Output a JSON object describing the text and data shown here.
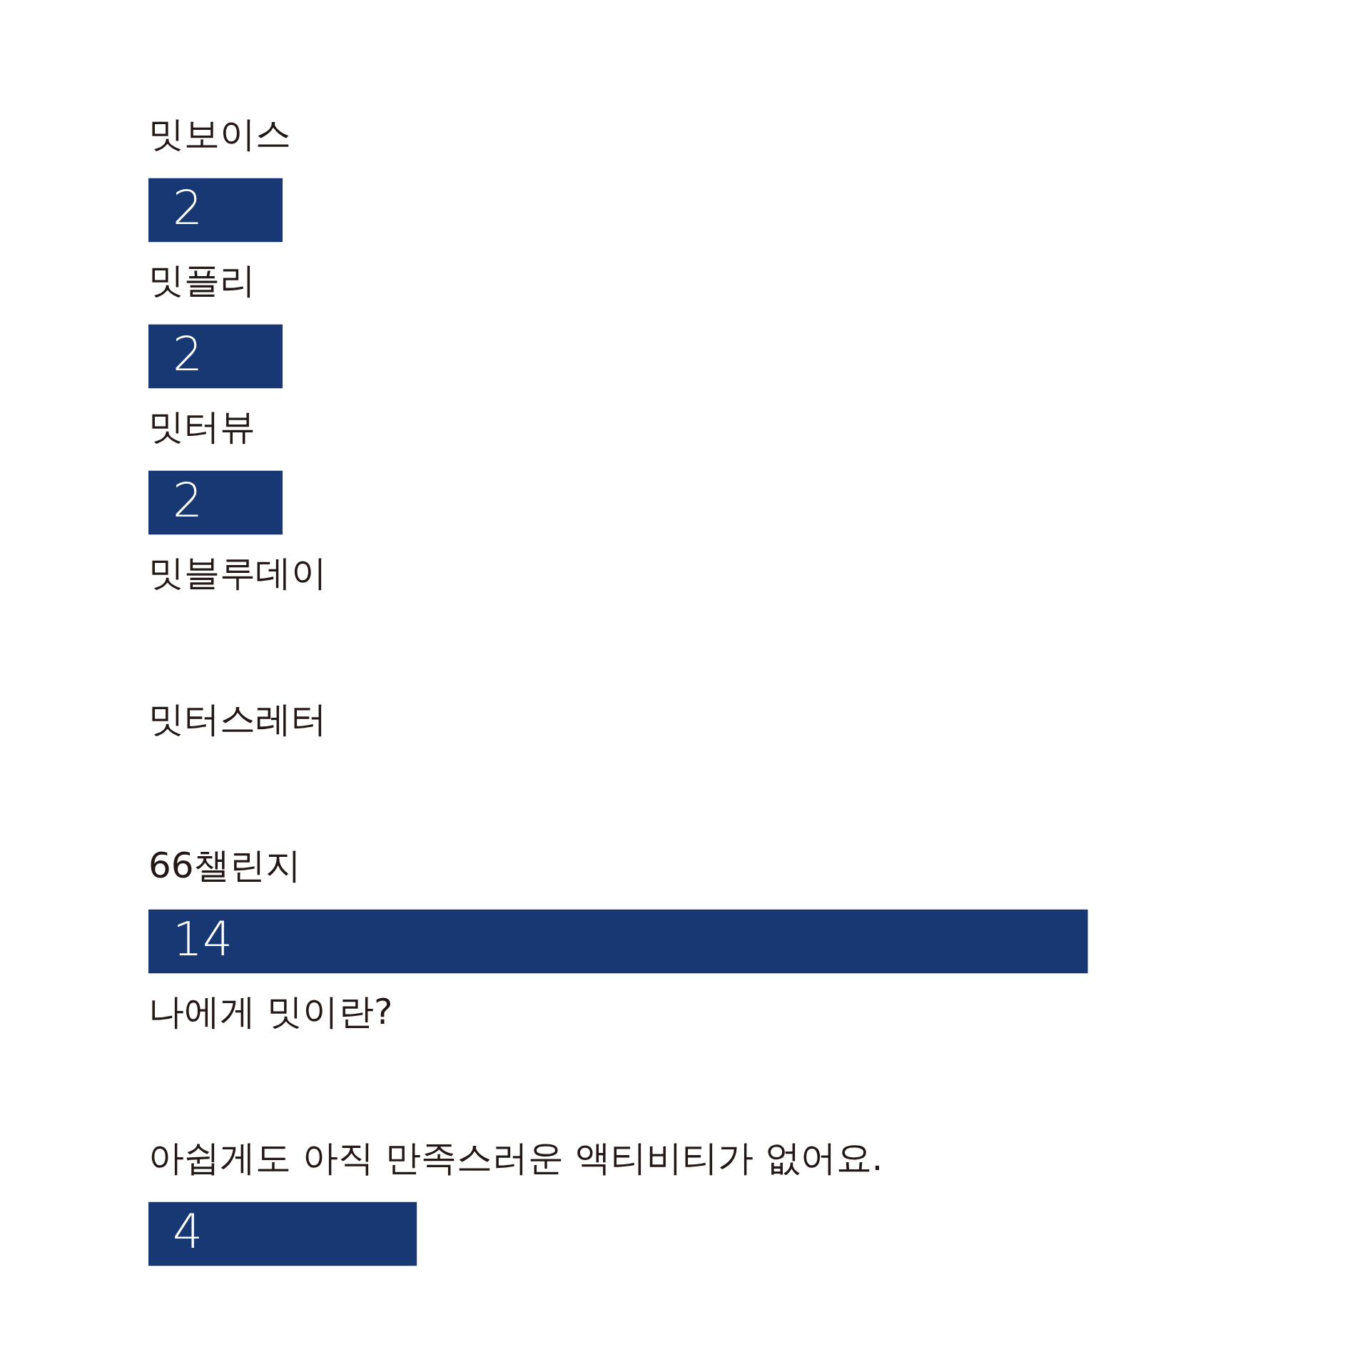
{
  "chart_data": {
    "type": "bar",
    "orientation": "horizontal",
    "categories": [
      "밋보이스",
      "밋플리",
      "밋터뷰",
      "밋블루데이",
      "밋터스레터",
      "66챌린지",
      "나에게 밋이란?",
      "아쉽게도 아직 만족스러운 액티비티가 없어요."
    ],
    "values": [
      2,
      2,
      2,
      0,
      0,
      14,
      0,
      4
    ],
    "value_labels": [
      "2",
      "2",
      "2",
      null,
      null,
      "14",
      null,
      "4"
    ],
    "color": "#183874",
    "legend": false,
    "tick_labels": false
  }
}
